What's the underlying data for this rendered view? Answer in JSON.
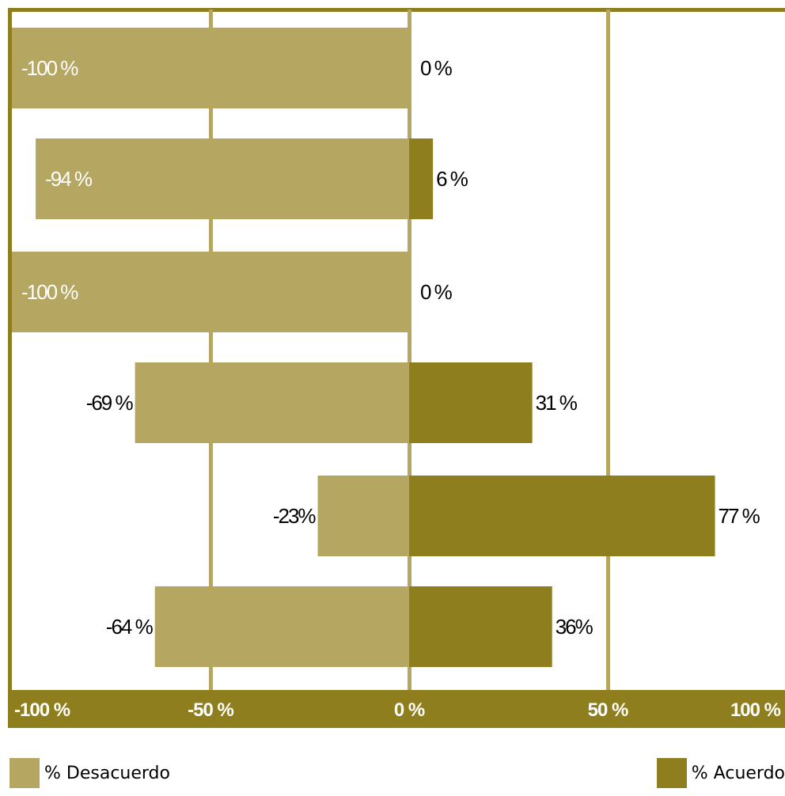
{
  "chart_data": {
    "type": "bar",
    "orientation": "horizontal",
    "stacked": "diverging",
    "series": [
      {
        "name": "% Desacuerdo",
        "values": [
          -100,
          -94,
          -100,
          -69,
          -23,
          -64
        ],
        "labels": [
          "-100 %",
          "-94 %",
          "-100 %",
          "-69 %",
          "-23%",
          "-64 %"
        ]
      },
      {
        "name": "% Acuerdo",
        "values": [
          0,
          6,
          0,
          31,
          77,
          36
        ],
        "labels": [
          "0 %",
          "6 %",
          "0 %",
          "31 %",
          "77 %",
          "36%"
        ]
      }
    ],
    "xlim": [
      -100,
      100
    ],
    "ticks": [
      -100,
      -50,
      0,
      50,
      100
    ],
    "tick_labels": [
      "-100 %",
      "-50 %",
      "0 %",
      "50 %",
      "100 %"
    ],
    "grid": true,
    "legend_position": "bottom"
  },
  "colors": {
    "desacuerdo": "#b5a662",
    "acuerdo": "#8f7e1d",
    "axis": "#8f7e1d"
  }
}
